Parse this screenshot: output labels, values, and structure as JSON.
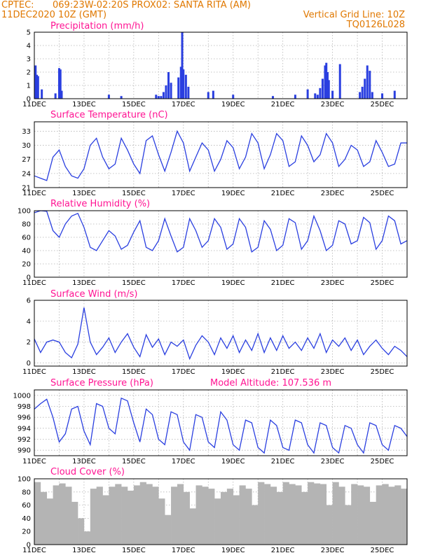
{
  "header": {
    "line1_left": "CPTEC:",
    "line1_mid": "069:23W-02:20S   PROX02: SANTA RITA (AM)",
    "line2_left": "11DEC2020 10Z (GMT)",
    "line2_right": "Vertical Grid Line: 10Z",
    "line3_right": "TQ0126L028"
  },
  "colors": {
    "header": "#e07800",
    "panel_title": "#ff1493",
    "curve": "#2a3fe0",
    "cloud": "#b4b4b4",
    "grid": "#b4b4b4"
  },
  "chart_data": [
    {
      "type": "bar",
      "title": "Precipitation (mm/h)",
      "ylim": [
        0,
        5
      ],
      "yticks": [
        0,
        1,
        2,
        3,
        4,
        5
      ],
      "xlabels": [
        "11DEC",
        "13DEC",
        "15DEC",
        "17DEC",
        "19DEC",
        "21DEC",
        "23DEC",
        "25DEC"
      ],
      "xlim_days": [
        0,
        15
      ],
      "grid": true,
      "events": [
        {
          "day": 0.05,
          "value": 2.5
        },
        {
          "day": 0.1,
          "value": 1.8
        },
        {
          "day": 0.15,
          "value": 1.7
        },
        {
          "day": 0.3,
          "value": 0.7
        },
        {
          "day": 0.85,
          "value": 0.4
        },
        {
          "day": 1.0,
          "value": 2.3
        },
        {
          "day": 1.05,
          "value": 2.2
        },
        {
          "day": 1.1,
          "value": 0.6
        },
        {
          "day": 3.0,
          "value": 0.3
        },
        {
          "day": 3.5,
          "value": 0.2
        },
        {
          "day": 4.9,
          "value": 0.3
        },
        {
          "day": 5.0,
          "value": 0.2
        },
        {
          "day": 5.1,
          "value": 0.2
        },
        {
          "day": 5.2,
          "value": 0.5
        },
        {
          "day": 5.3,
          "value": 1.0
        },
        {
          "day": 5.4,
          "value": 2.0
        },
        {
          "day": 5.5,
          "value": 1.2
        },
        {
          "day": 5.8,
          "value": 1.6
        },
        {
          "day": 5.9,
          "value": 2.4
        },
        {
          "day": 5.95,
          "value": 5.0
        },
        {
          "day": 6.0,
          "value": 2.2
        },
        {
          "day": 6.1,
          "value": 1.8
        },
        {
          "day": 6.2,
          "value": 0.9
        },
        {
          "day": 7.0,
          "value": 0.5
        },
        {
          "day": 7.2,
          "value": 0.6
        },
        {
          "day": 8.0,
          "value": 0.3
        },
        {
          "day": 9.6,
          "value": 0.2
        },
        {
          "day": 10.5,
          "value": 0.3
        },
        {
          "day": 11.0,
          "value": 0.7
        },
        {
          "day": 11.3,
          "value": 0.4
        },
        {
          "day": 11.4,
          "value": 0.3
        },
        {
          "day": 11.5,
          "value": 0.8
        },
        {
          "day": 11.6,
          "value": 1.5
        },
        {
          "day": 11.7,
          "value": 2.5
        },
        {
          "day": 11.75,
          "value": 2.7
        },
        {
          "day": 11.8,
          "value": 2.0
        },
        {
          "day": 11.85,
          "value": 1.4
        },
        {
          "day": 12.0,
          "value": 0.6
        },
        {
          "day": 12.3,
          "value": 2.6
        },
        {
          "day": 13.1,
          "value": 0.5
        },
        {
          "day": 13.2,
          "value": 0.9
        },
        {
          "day": 13.3,
          "value": 1.5
        },
        {
          "day": 13.4,
          "value": 2.5
        },
        {
          "day": 13.5,
          "value": 2.1
        },
        {
          "day": 13.6,
          "value": 0.5
        },
        {
          "day": 14.0,
          "value": 0.4
        },
        {
          "day": 14.5,
          "value": 0.6
        }
      ]
    },
    {
      "type": "line",
      "title": "Surface Temperature (nC)",
      "ylim": [
        21,
        35
      ],
      "yticks": [
        21,
        24,
        27,
        30,
        33
      ],
      "xlabels": [
        "11DEC",
        "13DEC",
        "15DEC",
        "17DEC",
        "19DEC",
        "21DEC",
        "23DEC",
        "25DEC"
      ],
      "grid": true,
      "x_days": [
        0,
        0.25,
        0.5,
        0.75,
        1.0,
        1.25,
        1.5,
        1.75,
        2.0,
        2.25,
        2.5,
        2.75,
        3.0,
        3.25,
        3.5,
        3.75,
        4.0,
        4.25,
        4.5,
        4.75,
        5.0,
        5.25,
        5.5,
        5.75,
        6.0,
        6.25,
        6.5,
        6.75,
        7.0,
        7.25,
        7.5,
        7.75,
        8.0,
        8.25,
        8.5,
        8.75,
        9.0,
        9.25,
        9.5,
        9.75,
        10.0,
        10.25,
        10.5,
        10.75,
        11.0,
        11.25,
        11.5,
        11.75,
        12.0,
        12.25,
        12.5,
        12.75,
        13.0,
        13.25,
        13.5,
        13.75,
        14.0,
        14.25,
        14.5,
        14.75,
        15.0
      ],
      "values": [
        23.5,
        23.0,
        22.5,
        27.5,
        29.0,
        25.5,
        23.5,
        23.0,
        25.0,
        30.0,
        31.5,
        27.5,
        25.0,
        26.0,
        31.5,
        29.0,
        26.0,
        24.0,
        31.0,
        32.0,
        28.0,
        24.5,
        28.5,
        33.0,
        30.5,
        24.5,
        27.5,
        30.5,
        29.0,
        24.5,
        27.0,
        31.0,
        29.5,
        25.0,
        27.5,
        32.5,
        30.5,
        25.0,
        28.0,
        32.5,
        31.0,
        25.5,
        26.5,
        32.0,
        30.0,
        26.5,
        28.0,
        32.5,
        30.5,
        25.5,
        27.0,
        30.0,
        29.0,
        25.5,
        26.5,
        31.0,
        28.5,
        25.5,
        26.0,
        30.5,
        30.5
      ]
    },
    {
      "type": "line",
      "title": "Relative Humidity (%)",
      "ylim": [
        0,
        100
      ],
      "yticks": [
        0,
        20,
        40,
        60,
        80,
        100
      ],
      "xlabels": [
        "11DEC",
        "13DEC",
        "15DEC",
        "17DEC",
        "19DEC",
        "21DEC",
        "23DEC",
        "25DEC"
      ],
      "grid": true,
      "x_days": [
        0,
        0.25,
        0.5,
        0.75,
        1.0,
        1.25,
        1.5,
        1.75,
        2.0,
        2.25,
        2.5,
        2.75,
        3.0,
        3.25,
        3.5,
        3.75,
        4.0,
        4.25,
        4.5,
        4.75,
        5.0,
        5.25,
        5.5,
        5.75,
        6.0,
        6.25,
        6.5,
        6.75,
        7.0,
        7.25,
        7.5,
        7.75,
        8.0,
        8.25,
        8.5,
        8.75,
        9.0,
        9.25,
        9.5,
        9.75,
        10.0,
        10.25,
        10.5,
        10.75,
        11.0,
        11.25,
        11.5,
        11.75,
        12.0,
        12.25,
        12.5,
        12.75,
        13.0,
        13.25,
        13.5,
        13.75,
        14.0,
        14.25,
        14.5,
        14.75,
        15.0
      ],
      "values": [
        97,
        100,
        99,
        70,
        60,
        80,
        92,
        96,
        75,
        45,
        40,
        55,
        70,
        62,
        42,
        48,
        68,
        85,
        45,
        40,
        55,
        88,
        62,
        38,
        45,
        88,
        70,
        45,
        55,
        88,
        75,
        42,
        50,
        88,
        75,
        38,
        45,
        85,
        72,
        40,
        48,
        88,
        82,
        42,
        55,
        92,
        70,
        40,
        48,
        85,
        80,
        50,
        55,
        90,
        82,
        42,
        55,
        92,
        85,
        50,
        55
      ]
    },
    {
      "type": "line",
      "title": "Surface Wind (m/s)",
      "ylim": [
        -0.3,
        6
      ],
      "yticks": [
        0,
        2,
        4,
        6
      ],
      "xlabels": [
        "11DEC",
        "13DEC",
        "15DEC",
        "17DEC",
        "19DEC",
        "21DEC",
        "23DEC",
        "25DEC"
      ],
      "grid": true,
      "x_days": [
        0,
        0.25,
        0.5,
        0.75,
        1.0,
        1.25,
        1.5,
        1.75,
        2.0,
        2.25,
        2.5,
        2.75,
        3.0,
        3.25,
        3.5,
        3.75,
        4.0,
        4.25,
        4.5,
        4.75,
        5.0,
        5.25,
        5.5,
        5.75,
        6.0,
        6.25,
        6.5,
        6.75,
        7.0,
        7.25,
        7.5,
        7.75,
        8.0,
        8.25,
        8.5,
        8.75,
        9.0,
        9.25,
        9.5,
        9.75,
        10.0,
        10.25,
        10.5,
        10.75,
        11.0,
        11.25,
        11.5,
        11.75,
        12.0,
        12.25,
        12.5,
        12.75,
        13.0,
        13.25,
        13.5,
        13.75,
        14.0,
        14.25,
        14.5,
        14.75,
        15.0
      ],
      "values": [
        2.3,
        1.0,
        2.0,
        2.2,
        2.0,
        1.0,
        0.5,
        1.8,
        5.3,
        2.0,
        0.8,
        1.5,
        2.4,
        1.0,
        2.0,
        2.8,
        1.5,
        0.6,
        2.7,
        1.5,
        2.3,
        0.8,
        2.0,
        1.6,
        2.2,
        0.4,
        1.7,
        2.6,
        2.0,
        0.8,
        2.4,
        1.4,
        2.6,
        1.0,
        2.2,
        1.2,
        2.8,
        1.0,
        2.4,
        1.2,
        2.6,
        1.4,
        2.0,
        1.2,
        2.4,
        1.4,
        2.8,
        1.0,
        2.2,
        1.6,
        2.4,
        1.2,
        2.2,
        0.8,
        1.6,
        2.2,
        1.4,
        0.8,
        1.6,
        1.2,
        0.6
      ]
    },
    {
      "type": "line",
      "title": "Surface Pressure (hPa)",
      "annotation": "Model Altitude: 107.536  m",
      "ylim": [
        989,
        1001
      ],
      "yticks": [
        990,
        992,
        994,
        996,
        998,
        1000
      ],
      "xlabels": [
        "11DEC",
        "13DEC",
        "15DEC",
        "17DEC",
        "19DEC",
        "21DEC",
        "23DEC",
        "25DEC"
      ],
      "grid": true,
      "x_days": [
        0,
        0.25,
        0.5,
        0.75,
        1.0,
        1.25,
        1.5,
        1.75,
        2.0,
        2.25,
        2.5,
        2.75,
        3.0,
        3.25,
        3.5,
        3.75,
        4.0,
        4.25,
        4.5,
        4.75,
        5.0,
        5.25,
        5.5,
        5.75,
        6.0,
        6.25,
        6.5,
        6.75,
        7.0,
        7.25,
        7.5,
        7.75,
        8.0,
        8.25,
        8.5,
        8.75,
        9.0,
        9.25,
        9.5,
        9.75,
        10.0,
        10.25,
        10.5,
        10.75,
        11.0,
        11.25,
        11.5,
        11.75,
        12.0,
        12.25,
        12.5,
        12.75,
        13.0,
        13.25,
        13.5,
        13.75,
        14.0,
        14.25,
        14.5,
        14.75,
        15.0
      ],
      "values": [
        997.5,
        998.5,
        999.3,
        996.0,
        991.5,
        993.0,
        997.5,
        998.0,
        993.5,
        991.0,
        998.5,
        998.0,
        994.0,
        993.0,
        999.5,
        999.0,
        995.0,
        991.5,
        997.5,
        996.5,
        992.0,
        991.0,
        997.0,
        996.5,
        991.5,
        990.0,
        996.5,
        996.0,
        991.5,
        990.5,
        997.0,
        995.5,
        991.0,
        990.0,
        995.5,
        995.0,
        990.5,
        989.5,
        995.5,
        994.5,
        990.5,
        990.0,
        995.5,
        995.0,
        991.0,
        989.5,
        995.0,
        994.5,
        990.5,
        989.5,
        994.5,
        994.0,
        991.0,
        989.5,
        995.0,
        994.5,
        991.0,
        990.0,
        994.5,
        994.0,
        992.5
      ]
    },
    {
      "type": "area",
      "title": "Cloud Cover (%)",
      "ylim": [
        0,
        100
      ],
      "yticks": [
        0,
        20,
        40,
        60,
        80,
        100
      ],
      "xlabels": [
        "11DEC",
        "13DEC",
        "15DEC",
        "17DEC",
        "19DEC",
        "21DEC",
        "23DEC",
        "25DEC"
      ],
      "grid": true,
      "x_days": [
        0,
        0.25,
        0.5,
        0.75,
        1.0,
        1.25,
        1.5,
        1.75,
        2.0,
        2.25,
        2.5,
        2.75,
        3.0,
        3.25,
        3.5,
        3.75,
        4.0,
        4.25,
        4.5,
        4.75,
        5.0,
        5.25,
        5.5,
        5.75,
        6.0,
        6.25,
        6.5,
        6.75,
        7.0,
        7.25,
        7.5,
        7.75,
        8.0,
        8.25,
        8.5,
        8.75,
        9.0,
        9.25,
        9.5,
        9.75,
        10.0,
        10.25,
        10.5,
        10.75,
        11.0,
        11.25,
        11.5,
        11.75,
        12.0,
        12.25,
        12.5,
        12.75,
        13.0,
        13.25,
        13.5,
        13.75,
        14.0,
        14.25,
        14.5,
        14.75,
        15.0
      ],
      "values": [
        95,
        80,
        70,
        90,
        93,
        88,
        65,
        40,
        20,
        85,
        88,
        75,
        88,
        92,
        88,
        82,
        90,
        95,
        92,
        88,
        70,
        45,
        88,
        92,
        80,
        55,
        90,
        88,
        85,
        70,
        80,
        85,
        75,
        90,
        85,
        60,
        95,
        92,
        88,
        80,
        95,
        92,
        90,
        80,
        95,
        93,
        92,
        60,
        95,
        88,
        60,
        92,
        90,
        88,
        65,
        90,
        92,
        88,
        90,
        85,
        92
      ]
    }
  ]
}
